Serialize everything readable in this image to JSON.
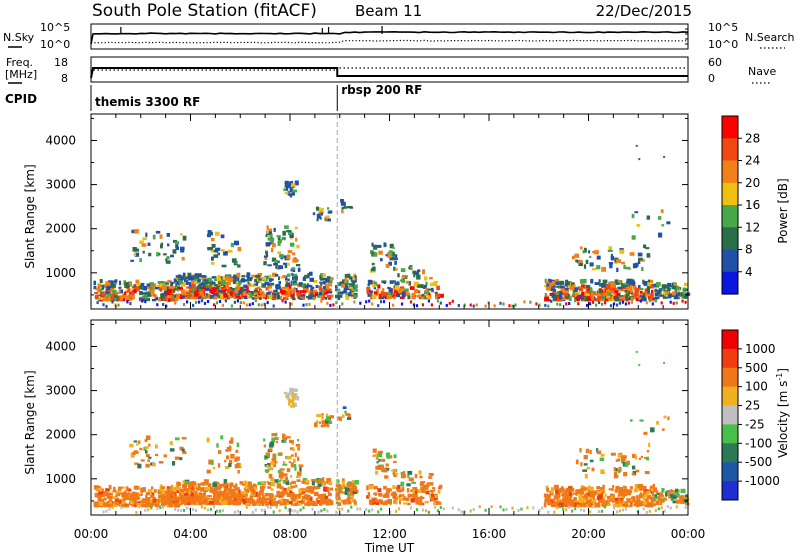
{
  "header": {
    "station": "South Pole Station (fitACF)",
    "beam": "Beam 11",
    "date": "22/Dec/2015"
  },
  "panels": {
    "nsky": {
      "left_label": "N.Sky",
      "right_label": "N.Search",
      "left_ticks": [
        "10^5",
        "10^0"
      ],
      "right_ticks": [
        "10^5",
        "10^0"
      ]
    },
    "freq": {
      "left_label_1": "Freq.",
      "left_label_2": "[MHz]",
      "right_label": "Nave",
      "left_ticks": [
        "18",
        "8"
      ],
      "right_ticks": [
        "60",
        "0"
      ]
    },
    "cpid": {
      "label": "CPID",
      "segments": [
        "themis 3300 RF",
        "rbsp 200 RF"
      ]
    }
  },
  "chart_data": [
    {
      "type": "heatmap",
      "id": "power",
      "ylabel": "Slant Range [km]",
      "xlabel": "",
      "yticks": [
        "4000",
        "3000",
        "2000",
        "1000"
      ],
      "ylim": [
        180,
        4600
      ],
      "colorbar_label": "Power [dB]",
      "colorbar_ticks": [
        "28",
        "24",
        "20",
        "16",
        "12",
        "8",
        "4"
      ],
      "colors": [
        "#0b16e0",
        "#2050a8",
        "#2a6e48",
        "#48a848",
        "#f0c010",
        "#f08018",
        "#f04810",
        "#ff0000"
      ],
      "colorbar_range": [
        0,
        32
      ]
    },
    {
      "type": "heatmap",
      "id": "velocity",
      "ylabel": "Slant Range [km]",
      "xlabel": "Time UT",
      "yticks": [
        "4000",
        "3000",
        "2000",
        "1000"
      ],
      "xticks": [
        "00:00",
        "04:00",
        "08:00",
        "12:00",
        "16:00",
        "20:00",
        "00:00"
      ],
      "ylim": [
        180,
        4600
      ],
      "colorbar_label": "Velocity [m s",
      "colorbar_label_sup": "-1",
      "colorbar_label_end": "]",
      "colorbar_ticks": [
        "1000",
        "500",
        "100",
        "25",
        "-25",
        "-100",
        "-500",
        "-1000"
      ],
      "colors": [
        "#1e2ed0",
        "#2058a8",
        "#2a7a5a",
        "#48c048",
        "#c0c0c0",
        "#f0b020",
        "#f07818",
        "#f03c10",
        "#f00000"
      ]
    }
  ],
  "timeline": {
    "xlim_hours": [
      0,
      24
    ],
    "mode_change_hour": 9.9
  }
}
